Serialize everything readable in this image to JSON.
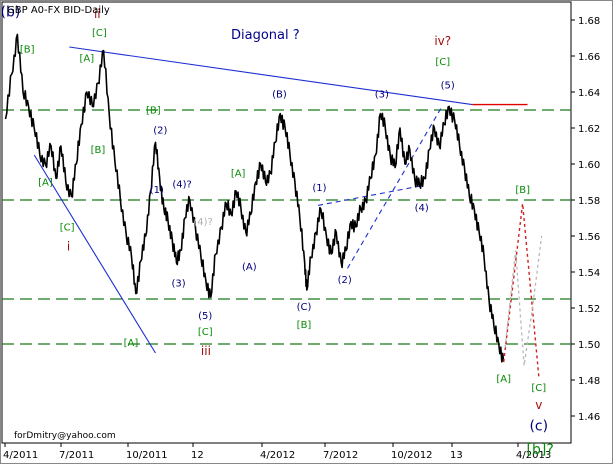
{
  "chart_data": {
    "type": "line",
    "title": "GBP A0-FX BID-Daily",
    "header_annotation": "Diagonal ?",
    "footer_text": "forDmitry@yahoo.com",
    "ylim": [
      1.445,
      1.69
    ],
    "y_ticks": [
      "1.68",
      "1.66",
      "1.64",
      "1.62",
      "1.60",
      "1.58",
      "1.56",
      "1.54",
      "1.52",
      "1.50",
      "1.48",
      "1.46"
    ],
    "x_ticks": [
      "4/2011",
      "7/2011",
      "10/2011",
      "12",
      "4/2012",
      "7/2012",
      "10/2012",
      "13",
      "4/2013"
    ],
    "horizontal_levels": [
      1.63,
      1.58,
      1.525,
      1.5
    ],
    "resistance_level": 1.633,
    "series": [
      {
        "values": [
          [
            "2011-04-01",
            1.625
          ],
          [
            "2011-04-10",
            1.65
          ],
          [
            "2011-04-18",
            1.672
          ],
          [
            "2011-04-26",
            1.64
          ],
          [
            "2011-05-04",
            1.632
          ],
          [
            "2011-05-12",
            1.62
          ],
          [
            "2011-05-20",
            1.605
          ],
          [
            "2011-05-28",
            1.6
          ],
          [
            "2011-06-05",
            1.61
          ],
          [
            "2011-06-12",
            1.592
          ],
          [
            "2011-06-19",
            1.61
          ],
          [
            "2011-06-26",
            1.59
          ],
          [
            "2011-07-04",
            1.582
          ],
          [
            "2011-07-11",
            1.6
          ],
          [
            "2011-07-18",
            1.622
          ],
          [
            "2011-07-26",
            1.64
          ],
          [
            "2011-08-03",
            1.632
          ],
          [
            "2011-08-11",
            1.645
          ],
          [
            "2011-08-19",
            1.663
          ],
          [
            "2011-08-27",
            1.628
          ],
          [
            "2011-09-04",
            1.602
          ],
          [
            "2011-09-12",
            1.58
          ],
          [
            "2011-09-20",
            1.562
          ],
          [
            "2011-09-28",
            1.548
          ],
          [
            "2011-10-04",
            1.528
          ],
          [
            "2011-10-11",
            1.546
          ],
          [
            "2011-10-18",
            1.56
          ],
          [
            "2011-10-25",
            1.585
          ],
          [
            "2011-11-01",
            1.612
          ],
          [
            "2011-11-07",
            1.592
          ],
          [
            "2011-11-13",
            1.575
          ],
          [
            "2011-11-19",
            1.568
          ],
          [
            "2011-11-25",
            1.558
          ],
          [
            "2011-12-01",
            1.545
          ],
          [
            "2011-12-07",
            1.552
          ],
          [
            "2011-12-13",
            1.57
          ],
          [
            "2011-12-20",
            1.58
          ],
          [
            "2011-12-28",
            1.565
          ],
          [
            "2012-01-05",
            1.548
          ],
          [
            "2012-01-12",
            1.535
          ],
          [
            "2012-01-19",
            1.526
          ],
          [
            "2012-01-26",
            1.55
          ],
          [
            "2012-02-03",
            1.565
          ],
          [
            "2012-02-10",
            1.578
          ],
          [
            "2012-02-17",
            1.572
          ],
          [
            "2012-02-24",
            1.585
          ],
          [
            "2012-03-02",
            1.575
          ],
          [
            "2012-03-09",
            1.562
          ],
          [
            "2012-03-16",
            1.572
          ],
          [
            "2012-03-23",
            1.59
          ],
          [
            "2012-03-30",
            1.6
          ],
          [
            "2012-04-06",
            1.59
          ],
          [
            "2012-04-13",
            1.595
          ],
          [
            "2012-04-20",
            1.612
          ],
          [
            "2012-04-27",
            1.628
          ],
          [
            "2012-05-04",
            1.62
          ],
          [
            "2012-05-11",
            1.605
          ],
          [
            "2012-05-18",
            1.59
          ],
          [
            "2012-05-25",
            1.57
          ],
          [
            "2012-06-01",
            1.545
          ],
          [
            "2012-06-04",
            1.53
          ],
          [
            "2012-06-10",
            1.548
          ],
          [
            "2012-06-17",
            1.562
          ],
          [
            "2012-06-24",
            1.575
          ],
          [
            "2012-07-02",
            1.56
          ],
          [
            "2012-07-09",
            1.55
          ],
          [
            "2012-07-16",
            1.562
          ],
          [
            "2012-07-23",
            1.545
          ],
          [
            "2012-07-30",
            1.552
          ],
          [
            "2012-08-06",
            1.568
          ],
          [
            "2012-08-13",
            1.565
          ],
          [
            "2012-08-20",
            1.575
          ],
          [
            "2012-08-27",
            1.58
          ],
          [
            "2012-09-03",
            1.592
          ],
          [
            "2012-09-10",
            1.605
          ],
          [
            "2012-09-17",
            1.628
          ],
          [
            "2012-09-24",
            1.62
          ],
          [
            "2012-10-01",
            1.605
          ],
          [
            "2012-10-08",
            1.598
          ],
          [
            "2012-10-15",
            1.62
          ],
          [
            "2012-10-22",
            1.6
          ],
          [
            "2012-10-29",
            1.608
          ],
          [
            "2012-11-05",
            1.592
          ],
          [
            "2012-11-12",
            1.588
          ],
          [
            "2012-11-19",
            1.592
          ],
          [
            "2012-11-26",
            1.608
          ],
          [
            "2012-12-03",
            1.62
          ],
          [
            "2012-12-10",
            1.61
          ],
          [
            "2012-12-17",
            1.622
          ],
          [
            "2012-12-24",
            1.632
          ],
          [
            "2013-01-01",
            1.624
          ],
          [
            "2013-01-08",
            1.61
          ],
          [
            "2013-01-15",
            1.598
          ],
          [
            "2013-01-22",
            1.582
          ],
          [
            "2013-01-29",
            1.575
          ],
          [
            "2013-02-05",
            1.562
          ],
          [
            "2013-02-12",
            1.548
          ],
          [
            "2013-02-19",
            1.525
          ],
          [
            "2013-02-26",
            1.51
          ],
          [
            "2013-03-05",
            1.5
          ],
          [
            "2013-03-12",
            1.49
          ]
        ]
      }
    ],
    "projection_red": [
      [
        "2013-03-12",
        1.49
      ],
      [
        "2013-04-08",
        1.578
      ],
      [
        "2013-05-01",
        1.482
      ]
    ],
    "projection_gray": [
      [
        "2013-03-14",
        1.498
      ],
      [
        "2013-03-29",
        1.552
      ],
      [
        "2013-04-10",
        1.488
      ],
      [
        "2013-04-22",
        1.52
      ],
      [
        "2013-05-05",
        1.56
      ]
    ],
    "trendlines": [
      {
        "kind": "solid",
        "from": [
          "2011-05-12",
          1.605
        ],
        "to": [
          "2011-11-01",
          1.495
        ]
      },
      {
        "kind": "solid",
        "from": [
          "2011-07-01",
          1.665
        ],
        "to": [
          "2013-01-26",
          1.633
        ]
      },
      {
        "kind": "dashed",
        "from": [
          "2012-08-01",
          1.542
        ],
        "to": [
          "2012-12-14",
          1.632
        ]
      },
      {
        "kind": "dashed",
        "from": [
          "2012-06-20",
          1.577
        ],
        "to": [
          "2012-11-16",
          1.588
        ]
      }
    ],
    "annotations": [
      {
        "text": "(b)",
        "date": "2011-04-08",
        "y": 1.682,
        "color": "navy",
        "size": 14
      },
      {
        "text": "ii",
        "date": "2011-08-10",
        "y": 1.681,
        "color": "darkred",
        "size": 12
      },
      {
        "text": "[C]",
        "date": "2011-08-13",
        "y": 1.671,
        "color": "green",
        "size": 10
      },
      {
        "text": "[B]",
        "date": "2011-05-02",
        "y": 1.662,
        "color": "green",
        "size": 10
      },
      {
        "text": "[A]",
        "date": "2011-07-26",
        "y": 1.657,
        "color": "green",
        "size": 10
      },
      {
        "text": "[B]",
        "date": "2011-08-11",
        "y": 1.606,
        "color": "green",
        "size": 10
      },
      {
        "text": "[A]",
        "date": "2011-05-28",
        "y": 1.588,
        "color": "green",
        "size": 10
      },
      {
        "text": "[C]",
        "date": "2011-06-28",
        "y": 1.563,
        "color": "green",
        "size": 10
      },
      {
        "text": "i",
        "date": "2011-06-30",
        "y": 1.552,
        "color": "darkred",
        "size": 12
      },
      {
        "text": "[A]",
        "date": "2011-09-27",
        "y": 1.499,
        "color": "green",
        "size": 10
      },
      {
        "text": "[B]",
        "date": "2011-10-29",
        "y": 1.628,
        "color": "green",
        "size": 10
      },
      {
        "text": "(2)",
        "date": "2011-11-08",
        "y": 1.617,
        "color": "navy",
        "size": 10
      },
      {
        "text": "(1)",
        "date": "2011-11-03",
        "y": 1.584,
        "color": "navy",
        "size": 10
      },
      {
        "text": "(4)?",
        "date": "2011-12-09",
        "y": 1.587,
        "color": "navy",
        "size": 10
      },
      {
        "text": "(4)?",
        "date": "2012-01-08",
        "y": 1.566,
        "color": "#b0b0b0",
        "size": 10
      },
      {
        "text": "(3)",
        "date": "2011-12-04",
        "y": 1.532,
        "color": "navy",
        "size": 10
      },
      {
        "text": "(5)",
        "date": "2012-01-11",
        "y": 1.514,
        "color": "navy",
        "size": 10
      },
      {
        "text": "[C]",
        "date": "2012-01-11",
        "y": 1.505,
        "color": "green",
        "size": 10
      },
      {
        "text": "iii",
        "date": "2012-01-12",
        "y": 1.494,
        "color": "darkred",
        "size": 12
      },
      {
        "text": "[A]",
        "date": "2012-02-27",
        "y": 1.593,
        "color": "green",
        "size": 10
      },
      {
        "text": "(A)",
        "date": "2012-03-14",
        "y": 1.541,
        "color": "navy",
        "size": 10
      },
      {
        "text": "(B)",
        "date": "2012-04-26",
        "y": 1.637,
        "color": "navy",
        "size": 10
      },
      {
        "text": "(C)",
        "date": "2012-05-31",
        "y": 1.519,
        "color": "navy",
        "size": 10
      },
      {
        "text": "[B]",
        "date": "2012-05-31",
        "y": 1.509,
        "color": "green",
        "size": 10
      },
      {
        "text": "(1)",
        "date": "2012-06-22",
        "y": 1.585,
        "color": "navy",
        "size": 10
      },
      {
        "text": "(2)",
        "date": "2012-07-28",
        "y": 1.534,
        "color": "navy",
        "size": 10
      },
      {
        "text": "(3)",
        "date": "2012-09-19",
        "y": 1.637,
        "color": "navy",
        "size": 10
      },
      {
        "text": "(4)",
        "date": "2012-11-15",
        "y": 1.574,
        "color": "navy",
        "size": 10
      },
      {
        "text": "(5)",
        "date": "2012-12-22",
        "y": 1.642,
        "color": "navy",
        "size": 10
      },
      {
        "text": "[C]",
        "date": "2012-12-15",
        "y": 1.655,
        "color": "green",
        "size": 10
      },
      {
        "text": "iv?",
        "date": "2012-12-15",
        "y": 1.666,
        "color": "darkred",
        "size": 12
      },
      {
        "text": "[B]",
        "date": "2013-04-08",
        "y": 1.584,
        "color": "green",
        "size": 10
      },
      {
        "text": "[A]",
        "date": "2013-03-12",
        "y": 1.479,
        "color": "green",
        "size": 10
      },
      {
        "text": "[C]",
        "date": "2013-05-01",
        "y": 1.474,
        "color": "green",
        "size": 10
      },
      {
        "text": "v",
        "date": "2013-05-01",
        "y": 1.464,
        "color": "darkred",
        "size": 12
      },
      {
        "text": "(c)",
        "date": "2013-05-01",
        "y": 1.452,
        "color": "navy",
        "size": 14
      },
      {
        "text": "[b]?",
        "date": "2013-05-03",
        "y": 1.439,
        "color": "green",
        "size": 14
      }
    ]
  }
}
